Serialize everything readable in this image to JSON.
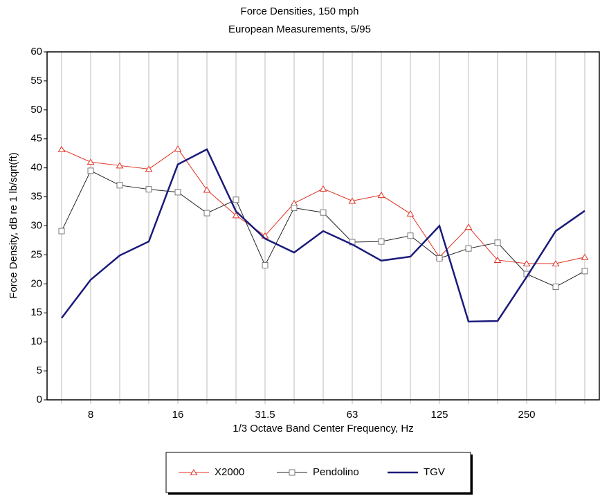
{
  "chart_data": {
    "type": "line",
    "title": "Force Densities, 150 mph",
    "subtitle": "European Measurements, 5/95",
    "x_label": "1/3 Octave Band Center Frequency, Hz",
    "y_label": "Force Density, dB re 1 lb/sqrt(ft)",
    "categories": [
      null,
      "8",
      null,
      null,
      "16",
      null,
      null,
      "31.5",
      null,
      null,
      "63",
      null,
      null,
      "125",
      null,
      null,
      "250",
      null,
      null
    ],
    "series": [
      {
        "name": "X2000",
        "color": "#e03020",
        "marker": "triangle",
        "values": [
          43.2,
          41,
          40.4,
          39.8,
          43.3,
          36.2,
          31.8,
          28.3,
          33.9,
          36.4,
          34.3,
          35.3,
          32.1,
          24.6,
          29.8,
          24.1,
          23.5,
          23.5,
          24.6
        ]
      },
      {
        "name": "Pendolino",
        "color": "#222222",
        "marker": "square",
        "values": [
          29.1,
          39.5,
          37,
          36.3,
          35.8,
          32.2,
          34.5,
          23.2,
          33.1,
          32.3,
          27.2,
          27.3,
          28.3,
          24.4,
          26.1,
          27.1,
          21.7,
          19.5,
          22.2
        ]
      },
      {
        "name": "TGV",
        "color": "#1a1a7a",
        "values": [
          14.1,
          20.7,
          24.9,
          27.3,
          40.6,
          43.2,
          32.5,
          27.8,
          25.4,
          29.1,
          26.8,
          24,
          24.7,
          30,
          13.5,
          13.6,
          21.2,
          29.1,
          32.6
        ]
      }
    ],
    "ylim": [
      0,
      60
    ],
    "yticks": [
      0,
      5,
      10,
      15,
      20,
      25,
      30,
      35,
      40,
      45,
      50,
      55,
      60
    ],
    "grid": "x",
    "legend": "bottom"
  }
}
